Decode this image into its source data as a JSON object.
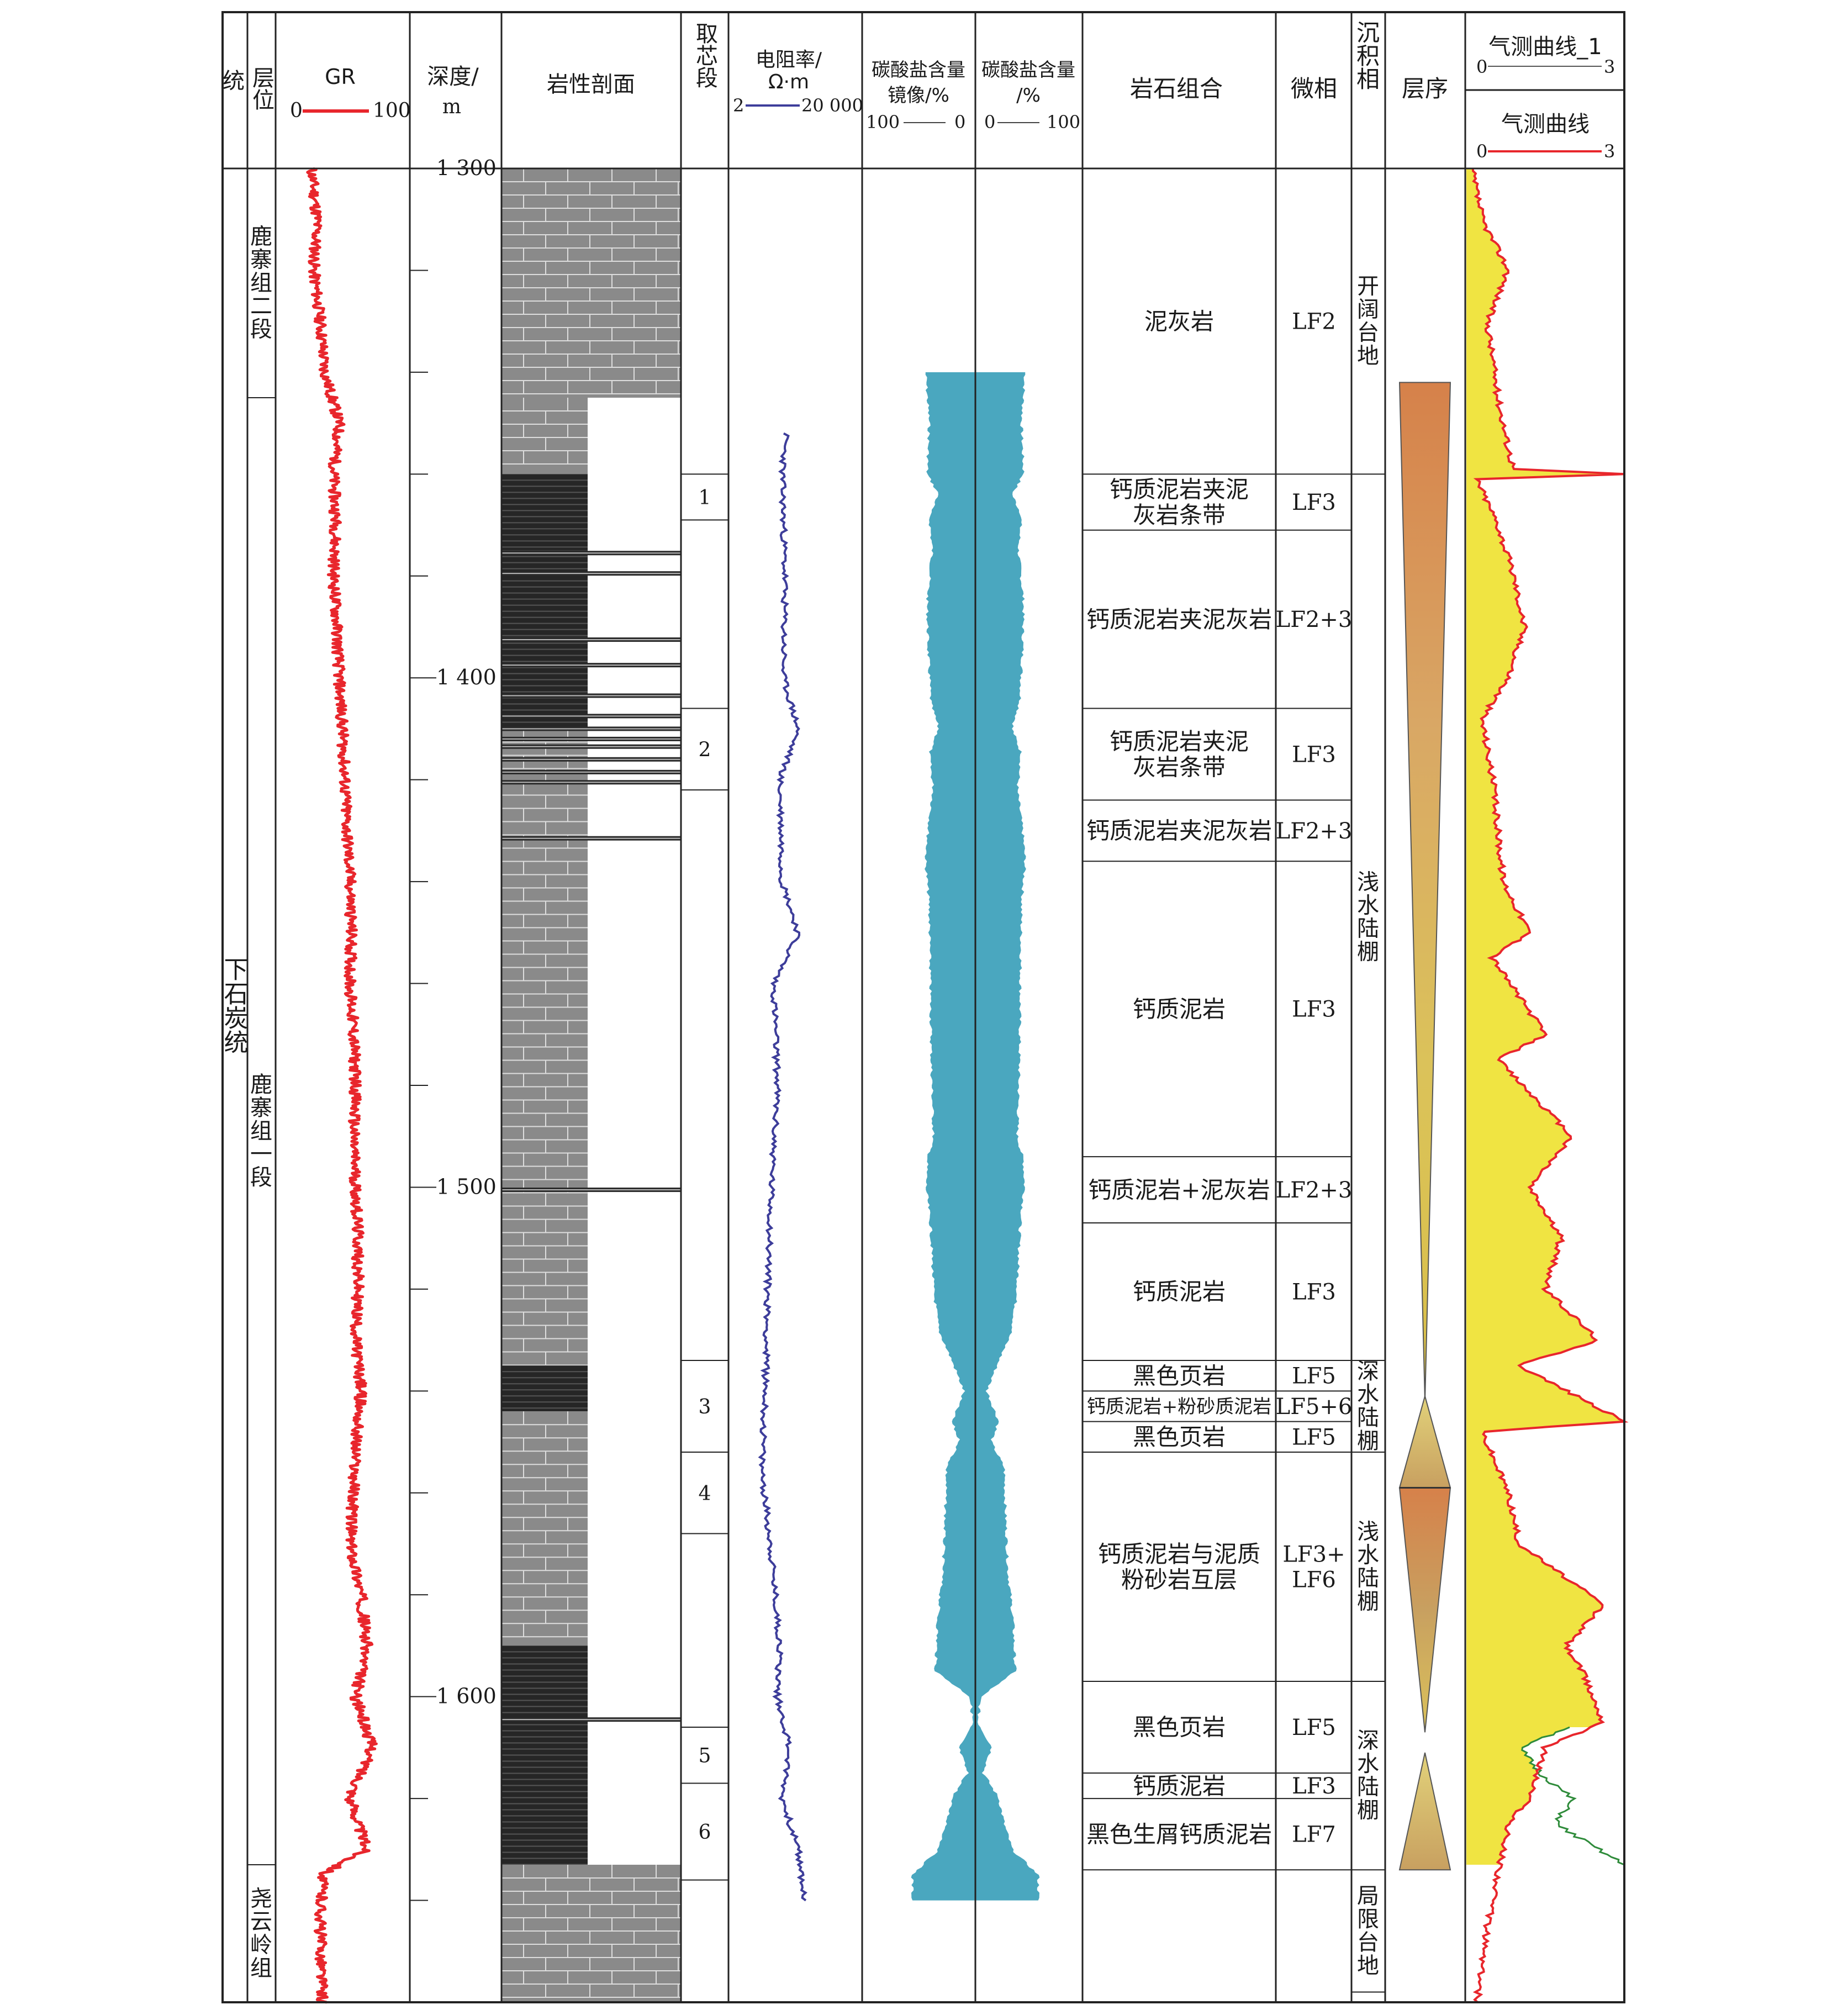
{
  "colors": {
    "gr_curve": "#e8262c",
    "resistivity_curve": "#3d3d9a",
    "carbonate_fill": "#4aa7bf",
    "gas_fill": "#f0e442",
    "gas_line": "#e8262c",
    "gas_line_1": "#2e8b3a",
    "limestone_fill": "#8a8a8a",
    "shale_fill": "#262626",
    "sequence_orange": "#d6814a",
    "sequence_yellow": "#dbc25a",
    "sequence_tan": "#c8a060"
  },
  "header": {
    "series": "统",
    "horizon": "层位",
    "gr": {
      "title": "GR",
      "min": "0",
      "max": "100"
    },
    "depth": {
      "title": "深度/",
      "unit": "m"
    },
    "lithology": "岩性剖面",
    "core": "取芯段",
    "resistivity": {
      "title": "电阻率/",
      "unit": "Ω·m",
      "min": "2",
      "max": "20 000"
    },
    "carb_mirror": {
      "title1": "碳酸盐含量",
      "title2": "镜像/%",
      "left": "100",
      "right": "0"
    },
    "carb": {
      "title1": "碳酸盐含量",
      "title2": "/%",
      "left": "0",
      "right": "100"
    },
    "rock": "岩石组合",
    "microfacies": "微相",
    "facies": "沉积相",
    "sequence": "层序",
    "gas1": {
      "title": "气测曲线_1",
      "min": "0",
      "max": "3"
    },
    "gas": {
      "title": "气测曲线",
      "min": "0",
      "max": "3"
    }
  },
  "series_label": "下石炭统",
  "horizons": [
    {
      "label": "鹿寨组二段",
      "top": 1300,
      "bottom": 1345
    },
    {
      "label": "鹿寨组一段",
      "top": 1345,
      "bottom": 1633
    },
    {
      "label": "尧云岭组",
      "top": 1633,
      "bottom": 1660
    }
  ],
  "depth_axis": {
    "min": 1300,
    "max": 1660,
    "labels": [
      "1 300",
      "1 400",
      "1 500",
      "1 600"
    ],
    "label_values": [
      1300,
      1400,
      1500,
      1600
    ],
    "minor_step": 20
  },
  "core_sections": [
    {
      "label": "1",
      "top": 1360,
      "bottom": 1369
    },
    {
      "label": "2",
      "top": 1406,
      "bottom": 1422
    },
    {
      "label": "3",
      "top": 1534,
      "bottom": 1552
    },
    {
      "label": "4",
      "top": 1552,
      "bottom": 1568
    },
    {
      "label": "5",
      "top": 1606,
      "bottom": 1617
    },
    {
      "label": "6",
      "top": 1617,
      "bottom": 1636
    }
  ],
  "rock_units": [
    {
      "rock": "泥灰岩",
      "mf": "LF2",
      "top": 1300,
      "bottom": 1360
    },
    {
      "rock": "钙质泥岩夹泥灰岩条带",
      "mf": "LF3",
      "top": 1360,
      "bottom": 1371
    },
    {
      "rock": "钙质泥岩夹泥灰岩",
      "mf": "LF2+3",
      "top": 1371,
      "bottom": 1406
    },
    {
      "rock": "钙质泥岩夹泥灰岩条带",
      "mf": "LF3",
      "top": 1406,
      "bottom": 1424
    },
    {
      "rock": "钙质泥岩夹泥灰岩",
      "mf": "LF2+3",
      "top": 1424,
      "bottom": 1436
    },
    {
      "rock": "钙质泥岩",
      "mf": "LF3",
      "top": 1436,
      "bottom": 1494
    },
    {
      "rock": "钙质泥岩+泥灰岩",
      "mf": "LF2+3",
      "top": 1494,
      "bottom": 1507
    },
    {
      "rock": "钙质泥岩",
      "mf": "LF3",
      "top": 1507,
      "bottom": 1534
    },
    {
      "rock": "黑色页岩",
      "mf": "LF5",
      "top": 1534,
      "bottom": 1540
    },
    {
      "rock": "钙质泥岩+粉砂质泥岩",
      "mf": "LF5+6",
      "top": 1540,
      "bottom": 1546
    },
    {
      "rock": "黑色页岩",
      "mf": "LF5",
      "top": 1546,
      "bottom": 1552
    },
    {
      "rock": "钙质泥岩与泥质粉砂岩互层",
      "mf": "LF3+LF6",
      "top": 1552,
      "bottom": 1597
    },
    {
      "rock": "黑色页岩",
      "mf": "LF5",
      "top": 1597,
      "bottom": 1615
    },
    {
      "rock": "钙质泥岩",
      "mf": "LF3",
      "top": 1615,
      "bottom": 1620
    },
    {
      "rock": "黑色生屑钙质泥岩",
      "mf": "LF7",
      "top": 1620,
      "bottom": 1634
    },
    {
      "rock": "",
      "mf": "",
      "top": 1634,
      "bottom": 1660
    }
  ],
  "facies": [
    {
      "label": "开阔台地",
      "top": 1300,
      "bottom": 1360
    },
    {
      "label": "浅水陆棚",
      "top": 1360,
      "bottom": 1534
    },
    {
      "label": "深水陆棚",
      "top": 1534,
      "bottom": 1552
    },
    {
      "label": "浅水陆棚",
      "top": 1552,
      "bottom": 1597
    },
    {
      "label": "深水陆棚",
      "top": 1597,
      "bottom": 1634
    },
    {
      "label": "局限台地",
      "top": 1634,
      "bottom": 1658
    }
  ],
  "lithology_layers": [
    {
      "type": "limestone",
      "top": 1300,
      "bottom": 1345,
      "width": 1.0
    },
    {
      "type": "limestone",
      "top": 1345,
      "bottom": 1360,
      "width": 0.48
    },
    {
      "type": "shale",
      "top": 1360,
      "bottom": 1375,
      "width": 0.48
    },
    {
      "type": "shale",
      "top": 1375,
      "bottom": 1392,
      "width": 0.48
    },
    {
      "type": "shale",
      "top": 1392,
      "bottom": 1410,
      "width": 0.48
    },
    {
      "type": "limestone",
      "top": 1410,
      "bottom": 1535,
      "width": 0.48
    },
    {
      "type": "shale",
      "top": 1535,
      "bottom": 1544,
      "width": 0.48
    },
    {
      "type": "limestone",
      "top": 1544,
      "bottom": 1590,
      "width": 0.48
    },
    {
      "type": "shale",
      "top": 1590,
      "bottom": 1633,
      "width": 0.48
    },
    {
      "type": "limestone",
      "top": 1633,
      "bottom": 1660,
      "width": 1.0
    }
  ],
  "lithology_stripes": [
    1375.5,
    1379.5,
    1392.5,
    1397.5,
    1403.5,
    1407.5,
    1410,
    1412,
    1413.5,
    1416,
    1418.5,
    1420.5,
    1431.5,
    1500.5,
    1604.5
  ],
  "sequence": [
    {
      "shape": "down",
      "top": 1342,
      "bottom": 1542,
      "colors": [
        "#d6814a",
        "#d9a765",
        "#dbc25a",
        "#d9c048"
      ]
    },
    {
      "shape": "up",
      "top": 1541,
      "bottom": 1559,
      "colors": [
        "#e2d27a",
        "#c8a060"
      ]
    },
    {
      "shape": "down",
      "top": 1559,
      "bottom": 1607,
      "colors": [
        "#d6814a",
        "#c8a060",
        "#dbc25a"
      ]
    },
    {
      "shape": "up",
      "top": 1611,
      "bottom": 1634,
      "colors": [
        "#e2d27a",
        "#c8a060"
      ]
    }
  ],
  "carbonate": {
    "top": 1340,
    "bottom": 1640,
    "control": [
      [
        1340,
        95
      ],
      [
        1350,
        88
      ],
      [
        1360,
        92
      ],
      [
        1364,
        70
      ],
      [
        1368,
        88
      ],
      [
        1375,
        82
      ],
      [
        1385,
        92
      ],
      [
        1395,
        90
      ],
      [
        1405,
        85
      ],
      [
        1410,
        70
      ],
      [
        1415,
        88
      ],
      [
        1422,
        80
      ],
      [
        1430,
        90
      ],
      [
        1436,
        95
      ],
      [
        1445,
        88
      ],
      [
        1460,
        86
      ],
      [
        1475,
        84
      ],
      [
        1490,
        80
      ],
      [
        1495,
        92
      ],
      [
        1500,
        94
      ],
      [
        1508,
        85
      ],
      [
        1520,
        80
      ],
      [
        1528,
        70
      ],
      [
        1534,
        45
      ],
      [
        1540,
        22
      ],
      [
        1546,
        45
      ],
      [
        1550,
        30
      ],
      [
        1555,
        55
      ],
      [
        1565,
        58
      ],
      [
        1575,
        62
      ],
      [
        1585,
        72
      ],
      [
        1595,
        76
      ],
      [
        1600,
        10
      ],
      [
        1605,
        5
      ],
      [
        1610,
        32
      ],
      [
        1615,
        15
      ],
      [
        1620,
        45
      ],
      [
        1625,
        55
      ],
      [
        1630,
        70
      ],
      [
        1635,
        120
      ],
      [
        1640,
        120
      ]
    ]
  },
  "gr_curve": {
    "control": [
      [
        1300,
        10
      ],
      [
        1310,
        15
      ],
      [
        1320,
        12
      ],
      [
        1330,
        18
      ],
      [
        1340,
        22
      ],
      [
        1350,
        35
      ],
      [
        1360,
        30
      ],
      [
        1370,
        32
      ],
      [
        1380,
        30
      ],
      [
        1390,
        33
      ],
      [
        1400,
        35
      ],
      [
        1410,
        38
      ],
      [
        1420,
        40
      ],
      [
        1430,
        42
      ],
      [
        1440,
        45
      ],
      [
        1450,
        46
      ],
      [
        1460,
        45
      ],
      [
        1470,
        48
      ],
      [
        1480,
        50
      ],
      [
        1490,
        48
      ],
      [
        1500,
        50
      ],
      [
        1510,
        52
      ],
      [
        1520,
        52
      ],
      [
        1530,
        50
      ],
      [
        1540,
        55
      ],
      [
        1550,
        50
      ],
      [
        1560,
        48
      ],
      [
        1570,
        45
      ],
      [
        1580,
        55
      ],
      [
        1590,
        60
      ],
      [
        1600,
        50
      ],
      [
        1610,
        65
      ],
      [
        1620,
        45
      ],
      [
        1630,
        60
      ],
      [
        1635,
        20
      ],
      [
        1645,
        18
      ],
      [
        1660,
        20
      ]
    ]
  },
  "resistivity_curve": {
    "top": 1352,
    "bottom": 1640,
    "control": [
      [
        1352,
        45
      ],
      [
        1360,
        42
      ],
      [
        1380,
        44
      ],
      [
        1400,
        43
      ],
      [
        1410,
        55
      ],
      [
        1420,
        40
      ],
      [
        1440,
        42
      ],
      [
        1450,
        55
      ],
      [
        1460,
        35
      ],
      [
        1480,
        38
      ],
      [
        1500,
        33
      ],
      [
        1520,
        30
      ],
      [
        1540,
        28
      ],
      [
        1555,
        25
      ],
      [
        1570,
        32
      ],
      [
        1590,
        40
      ],
      [
        1600,
        38
      ],
      [
        1610,
        48
      ],
      [
        1620,
        42
      ],
      [
        1630,
        55
      ],
      [
        1640,
        60
      ]
    ]
  },
  "gas_curve": {
    "control": [
      [
        1300,
        0.1
      ],
      [
        1310,
        0.3
      ],
      [
        1320,
        0.8
      ],
      [
        1330,
        0.4
      ],
      [
        1345,
        0.6
      ],
      [
        1355,
        0.8
      ],
      [
        1359,
        0.9
      ],
      [
        1360,
        3.0
      ],
      [
        1361,
        0.2
      ],
      [
        1370,
        0.6
      ],
      [
        1380,
        0.9
      ],
      [
        1390,
        1.1
      ],
      [
        1400,
        0.8
      ],
      [
        1408,
        0.3
      ],
      [
        1420,
        0.5
      ],
      [
        1440,
        0.7
      ],
      [
        1450,
        1.2
      ],
      [
        1455,
        0.5
      ],
      [
        1470,
        1.5
      ],
      [
        1475,
        0.6
      ],
      [
        1490,
        2.0
      ],
      [
        1500,
        1.2
      ],
      [
        1510,
        1.8
      ],
      [
        1520,
        1.5
      ],
      [
        1530,
        2.5
      ],
      [
        1535,
        1.0
      ],
      [
        1546,
        3.0
      ],
      [
        1548,
        0.3
      ],
      [
        1560,
        0.8
      ],
      [
        1570,
        1.0
      ],
      [
        1582,
        2.6
      ],
      [
        1590,
        1.9
      ],
      [
        1595,
        2.2
      ],
      [
        1605,
        2.6
      ],
      [
        1610,
        1.5
      ],
      [
        1620,
        1.2
      ],
      [
        1625,
        0.8
      ],
      [
        1635,
        0.6
      ],
      [
        1645,
        0.4
      ],
      [
        1660,
        0.2
      ]
    ],
    "fill_cutoff": 1633
  },
  "gas_curve_1": {
    "control": [
      [
        1606,
        2.0
      ],
      [
        1610,
        1.0
      ],
      [
        1615,
        1.4
      ],
      [
        1620,
        2.0
      ],
      [
        1625,
        1.7
      ],
      [
        1630,
        2.5
      ],
      [
        1633,
        3.0
      ]
    ]
  }
}
